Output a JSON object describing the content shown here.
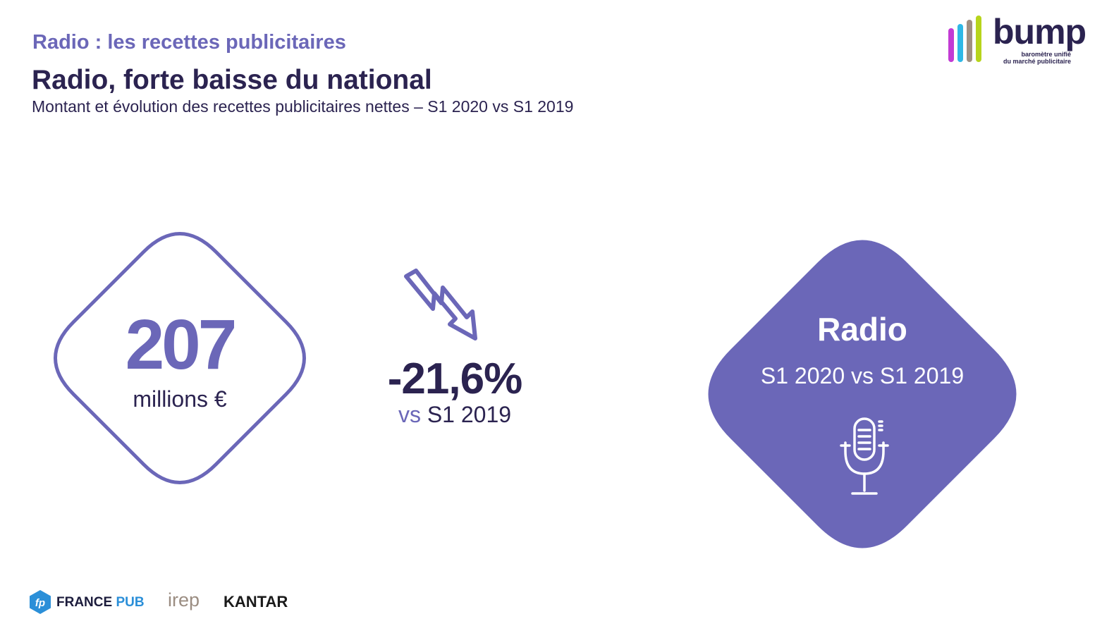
{
  "header": {
    "kicker": "Radio : les recettes publicitaires",
    "title": "Radio, forte baisse du national",
    "subtitle": "Montant et évolution des recettes publicitaires nettes – S1 2020 vs S1 2019"
  },
  "brand": {
    "name": "bump",
    "tagline_line1": "baromètre unifié",
    "tagline_line2": "du marché publicitaire",
    "bar_colors": [
      "#c23bd4",
      "#2fb8e6",
      "#a08f82",
      "#b7d41c"
    ]
  },
  "kpi": {
    "amount": "207",
    "unit": "millions €",
    "change": "-21,6%",
    "comparison_prefix": "vs",
    "comparison_period": "S1 2019",
    "trend_icon": "trend-down-arrow-icon"
  },
  "media_card": {
    "name": "Radio",
    "period": "S1 2020 vs S1 2019",
    "icon": "microphone-icon"
  },
  "footer": {
    "france_pub_prefix": "FRANCE",
    "france_pub_suffix": "PUB",
    "irep": "irep",
    "kantar": "KANTAR"
  },
  "colors": {
    "accent": "#6b67b8",
    "dark": "#2b2350",
    "france_pub_blue": "#2b8fd8"
  }
}
